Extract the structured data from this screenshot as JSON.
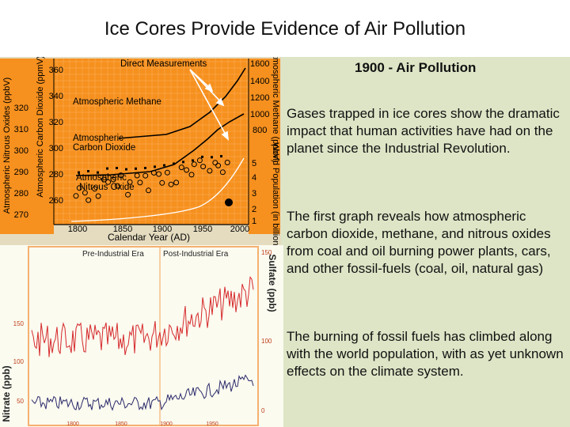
{
  "slide": {
    "title": "Ice Cores Provide Evidence of Air Pollution",
    "subheading": "1900 - Air Pollution",
    "paragraphs": [
      "Gases trapped in ice cores show the dramatic impact that human activities have had on the planet since the Industrial Revolution.",
      "The first graph reveals how atmospheric carbon dioxide, methane, and nitrous oxides from coal and oil burning power plants, cars, and other fossil-fuels (coal, oil, natural gas)",
      "The burning of fossil fuels has climbed along with the world population, with as yet unknown effects on the climate system."
    ]
  },
  "figure1": {
    "bg": "#f6901e",
    "labels": {
      "direct": "Direct Measurements",
      "methane": "Atmospheric Methane",
      "co2_l1": "Atmospheric",
      "co2_l2": "Carbon Dioxide",
      "n2o_l1": "Atmospheric",
      "n2o_l2": "Nitrous Oxide",
      "xlabel": "Calendar Year (AD)",
      "ylabel_n2o": "Atmospheric Nitrous Oxides (ppbV)",
      "ylabel_co2": "Atmospheric Carbon Dioxide (ppmV)",
      "ylabel_ch4": "Atmospheric Methane (ppbV)",
      "ylabel_pop": "World Population (in billions)"
    },
    "x_ticks": [
      "1800",
      "1850",
      "1900",
      "1950",
      "2000"
    ],
    "n2o_ticks": [
      "320",
      "310",
      "300",
      "290",
      "280",
      "270"
    ],
    "co2_ticks": [
      "360",
      "340",
      "320",
      "300",
      "280",
      "260"
    ],
    "ch4_ticks": [
      "1600",
      "1400",
      "1200",
      "1000",
      "800"
    ],
    "pop_ticks": [
      "5",
      "4",
      "3",
      "2",
      "1"
    ]
  },
  "figure2": {
    "bg": "#fbfbf0",
    "labels": {
      "pre": "Pre-Industrial Era",
      "post": "Post-Industrial Era",
      "ylabel_left": "Nitrate (ppb)",
      "ylabel_right": "Sulfate (ppb)"
    },
    "left_ticks": [
      "150",
      "100",
      "50"
    ],
    "right_ticks": [
      "150",
      "100",
      "0"
    ],
    "x_ticks": [
      "1800",
      "1850",
      "1900",
      "1950"
    ]
  }
}
